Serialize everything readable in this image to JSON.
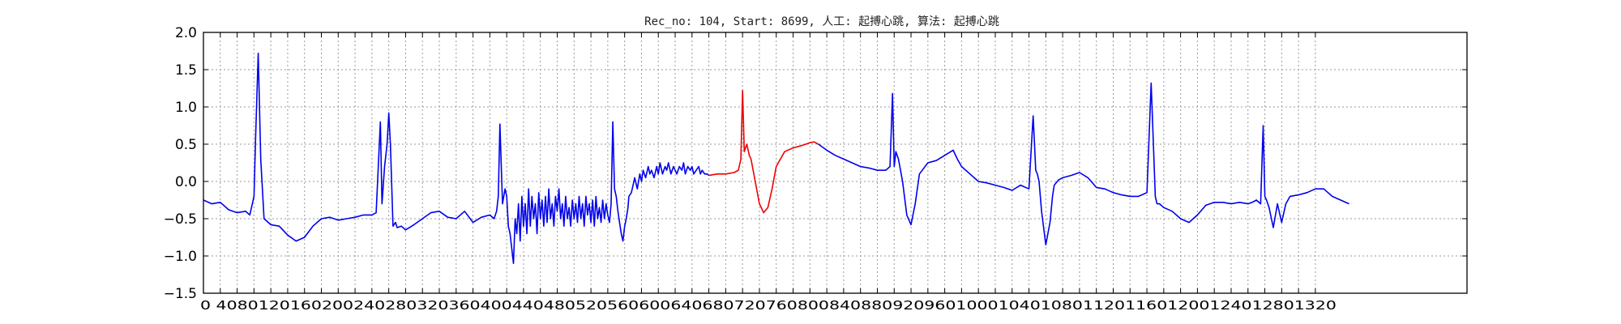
{
  "chart_data": {
    "type": "line",
    "title": "Rec_no: 104, Start: 8699, 人工: 起搏心跳, 算法: 起搏心跳",
    "xlabel": "",
    "ylabel": "",
    "xlim": [
      0,
      1500
    ],
    "ylim": [
      -1.5,
      2.0
    ],
    "grid": true,
    "yticks": [
      -1.5,
      -1.0,
      -0.5,
      0.0,
      0.5,
      1.0,
      1.5,
      2.0
    ],
    "ytick_labels": [
      "−1.5",
      "−1.0",
      "−0.5",
      "0.0",
      "0.5",
      "1.0",
      "1.5",
      "2.0"
    ],
    "xtick_step": 20,
    "xtick_max": 1320,
    "xtick_labels_concatenated": "0 4080120160200240280320360400440480520560600640680720760800840880920960100010401080112011601200124012801320",
    "series": [
      {
        "color": "#0000ee",
        "x": [
          0,
          10,
          20,
          30,
          40,
          50,
          55,
          60,
          62,
          65,
          68,
          72,
          80,
          90,
          100,
          110,
          120,
          130,
          140,
          150,
          160,
          170,
          180,
          190,
          200,
          205,
          210,
          212,
          215,
          218,
          220,
          222,
          225,
          228,
          230,
          235,
          240,
          250,
          260,
          270,
          280,
          290,
          300,
          310,
          320,
          330,
          340,
          345,
          348,
          350,
          352,
          355,
          358,
          360,
          362,
          364,
          366,
          368,
          370,
          372,
          374,
          376,
          378,
          380,
          382,
          384,
          386,
          388,
          390,
          392,
          394,
          396,
          398,
          400,
          402,
          404,
          406,
          408,
          410,
          412,
          414,
          416,
          418,
          420,
          422,
          424,
          426,
          428,
          430,
          432,
          434,
          436,
          438,
          440,
          442,
          444,
          446,
          448,
          450,
          452,
          454,
          456,
          458,
          460,
          462,
          464,
          466,
          468,
          470,
          472,
          474,
          476,
          478,
          480,
          482,
          484,
          486,
          488,
          490,
          492,
          494,
          496,
          498,
          500,
          502,
          504,
          505,
          508,
          510,
          512,
          515,
          518,
          520,
          522,
          525,
          528,
          530,
          532,
          535,
          538,
          540,
          542,
          545,
          548,
          550,
          552,
          555,
          558,
          560,
          562,
          565,
          568,
          570,
          572,
          575,
          578,
          580,
          582,
          585,
          588,
          590,
          592,
          595,
          598,
          600
        ],
        "y": [
          -0.25,
          -0.3,
          -0.28,
          -0.38,
          -0.42,
          -0.4,
          -0.45,
          -0.2,
          0.6,
          1.72,
          0.3,
          -0.5,
          -0.58,
          -0.6,
          -0.72,
          -0.8,
          -0.75,
          -0.6,
          -0.5,
          -0.48,
          -0.52,
          -0.5,
          -0.48,
          -0.45,
          -0.45,
          -0.42,
          0.8,
          -0.3,
          0.2,
          0.5,
          0.92,
          0.5,
          -0.6,
          -0.55,
          -0.62,
          -0.6,
          -0.65,
          -0.58,
          -0.5,
          -0.42,
          -0.4,
          -0.48,
          -0.5,
          -0.4,
          -0.55,
          -0.48,
          -0.45,
          -0.5,
          -0.4,
          -0.2,
          0.77,
          -0.3,
          -0.1,
          -0.2,
          -0.6,
          -0.7,
          -0.9,
          -1.1,
          -0.5,
          -0.7,
          -0.3,
          -0.8,
          -0.2,
          -0.6,
          -0.3,
          -0.7,
          -0.1,
          -0.6,
          -0.2,
          -0.5,
          -0.3,
          -0.7,
          -0.15,
          -0.5,
          -0.25,
          -0.6,
          -0.2,
          -0.55,
          -0.1,
          -0.5,
          -0.3,
          -0.6,
          -0.2,
          -0.4,
          -0.1,
          -0.5,
          -0.3,
          -0.6,
          -0.2,
          -0.5,
          -0.35,
          -0.6,
          -0.25,
          -0.5,
          -0.3,
          -0.55,
          -0.2,
          -0.5,
          -0.3,
          -0.6,
          -0.2,
          -0.45,
          -0.3,
          -0.55,
          -0.25,
          -0.6,
          -0.2,
          -0.5,
          -0.35,
          -0.55,
          -0.25,
          -0.5,
          -0.3,
          -0.45,
          -0.55,
          -0.3,
          0.8,
          -0.1,
          -0.2,
          -0.4,
          -0.55,
          -0.7,
          -0.8,
          -0.6,
          -0.5,
          -0.35,
          -0.2,
          -0.15,
          -0.05,
          0.05,
          -0.1,
          0.1,
          0.0,
          0.15,
          0.05,
          0.2,
          0.1,
          0.15,
          0.05,
          0.2,
          0.1,
          0.25,
          0.1,
          0.2,
          0.15,
          0.25,
          0.1,
          0.2,
          0.15,
          0.1,
          0.2,
          0.15,
          0.25,
          0.1,
          0.2,
          0.15,
          0.2,
          0.1,
          0.15,
          0.2,
          0.1,
          0.15,
          0.1,
          0.1,
          0.08
        ]
      },
      {
        "color": "#ee0000",
        "x": [
          600,
          610,
          620,
          630,
          635,
          638,
          640,
          642,
          645,
          648,
          650,
          655,
          660,
          665,
          670,
          675,
          680,
          690,
          700,
          710,
          720,
          725,
          730
        ],
        "y": [
          0.08,
          0.1,
          0.1,
          0.12,
          0.15,
          0.3,
          1.22,
          0.4,
          0.5,
          0.35,
          0.3,
          0.0,
          -0.3,
          -0.42,
          -0.35,
          -0.1,
          0.2,
          0.4,
          0.45,
          0.48,
          0.52,
          0.53,
          0.5
        ]
      },
      {
        "color": "#0000ee",
        "x": [
          730,
          740,
          750,
          760,
          770,
          780,
          790,
          800,
          810,
          815,
          818,
          820,
          822,
          825,
          830,
          835,
          840,
          845,
          850,
          860,
          870,
          880,
          890,
          895,
          900,
          910,
          920,
          930,
          940,
          950,
          960,
          970,
          980,
          985,
          988,
          990,
          992,
          995,
          1000,
          1005,
          1008,
          1010,
          1015,
          1020,
          1030,
          1040,
          1050,
          1060,
          1070,
          1080,
          1090,
          1100,
          1110,
          1120,
          1125,
          1128,
          1130,
          1132,
          1135,
          1140,
          1150,
          1160,
          1170,
          1180,
          1190,
          1200,
          1210,
          1220,
          1230,
          1240,
          1245,
          1250,
          1255,
          1258,
          1260,
          1262,
          1265,
          1270,
          1275,
          1280,
          1285,
          1290,
          1300,
          1310,
          1320,
          1330,
          1335,
          1340,
          1350,
          1360
        ],
        "y": [
          0.5,
          0.42,
          0.35,
          0.3,
          0.25,
          0.2,
          0.18,
          0.15,
          0.15,
          0.2,
          1.18,
          0.2,
          0.4,
          0.3,
          0.0,
          -0.45,
          -0.58,
          -0.3,
          0.1,
          0.25,
          0.28,
          0.35,
          0.42,
          0.3,
          0.2,
          0.1,
          0.0,
          -0.02,
          -0.05,
          -0.08,
          -0.12,
          -0.05,
          -0.1,
          0.88,
          0.15,
          0.1,
          0.0,
          -0.4,
          -0.85,
          -0.55,
          -0.2,
          -0.05,
          0.02,
          0.05,
          0.08,
          0.12,
          0.05,
          -0.08,
          -0.1,
          -0.15,
          -0.18,
          -0.2,
          -0.2,
          -0.15,
          1.32,
          0.4,
          -0.2,
          -0.3,
          -0.3,
          -0.35,
          -0.4,
          -0.5,
          -0.55,
          -0.45,
          -0.32,
          -0.28,
          -0.28,
          -0.3,
          -0.28,
          -0.3,
          -0.28,
          -0.25,
          -0.3,
          0.75,
          -0.2,
          -0.25,
          -0.35,
          -0.62,
          -0.3,
          -0.55,
          -0.3,
          -0.2,
          -0.18,
          -0.15,
          -0.1,
          -0.1,
          -0.15,
          -0.2,
          -0.25,
          -0.3
        ]
      }
    ]
  }
}
